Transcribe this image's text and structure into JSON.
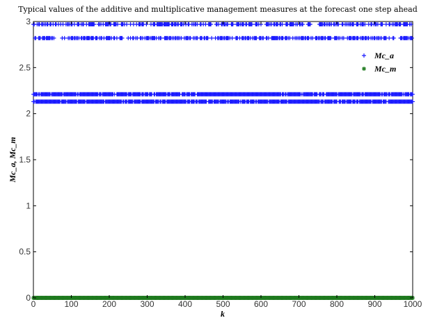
{
  "chart_data": {
    "type": "scatter",
    "title": "Typical values of the additive and multiplicative management measures at the forecast one step ahead",
    "xlabel": "k",
    "ylabel": "Mc_a, Mc_m",
    "xlim": [
      0,
      1000
    ],
    "ylim": [
      0,
      3
    ],
    "x_ticks": [
      "0",
      "100",
      "200",
      "300",
      "400",
      "500",
      "600",
      "700",
      "800",
      "900",
      "1000"
    ],
    "y_ticks": [
      "0",
      "0.5",
      "1",
      "1.5",
      "2",
      "2.5",
      "3"
    ],
    "grid": false,
    "legend_position": "top-right",
    "series": [
      {
        "name": "Mc_a",
        "marker": "plus",
        "color": "#1a1aff",
        "levels": [
          2.97,
          2.82,
          2.21,
          2.13
        ],
        "description_values": {
          "y_levels": [
            2.97,
            2.82,
            2.21,
            2.13
          ],
          "x_range": [
            0,
            1000
          ]
        }
      },
      {
        "name": "Mc_m",
        "marker": "star",
        "color": "#1f7a1f",
        "levels": [
          0
        ],
        "description_values": {
          "y_levels": [
            0
          ],
          "x_range": [
            0,
            1000
          ]
        }
      }
    ]
  }
}
